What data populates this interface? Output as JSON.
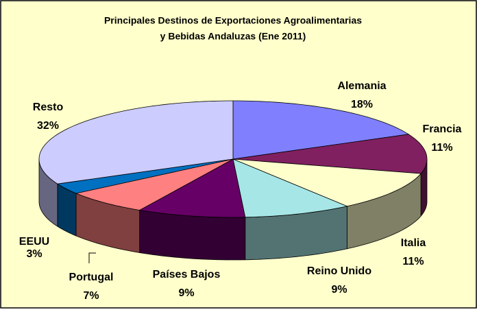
{
  "chart_data": {
    "type": "pie3d",
    "title": [
      "Principales Destinos de Exportaciones Agroalimentarias",
      "y Bebidas Andaluzas (Ene 2011)"
    ],
    "categories": [
      "Alemania",
      "Francia",
      "Italia",
      "Reino Unido",
      "Países Bajos",
      "Portugal",
      "EEUU",
      "Resto"
    ],
    "values": [
      18,
      11,
      11,
      9,
      9,
      7,
      3,
      32
    ],
    "value_labels": [
      "18%",
      "11%",
      "11%",
      "9%",
      "9%",
      "7%",
      "3%",
      "32%"
    ],
    "colors": [
      "#8080ff",
      "#802060",
      "#ffffcc",
      "#a6e6e6",
      "#660066",
      "#ff8080",
      "#0070c0",
      "#ccccff"
    ],
    "background": "#ffffcc"
  }
}
